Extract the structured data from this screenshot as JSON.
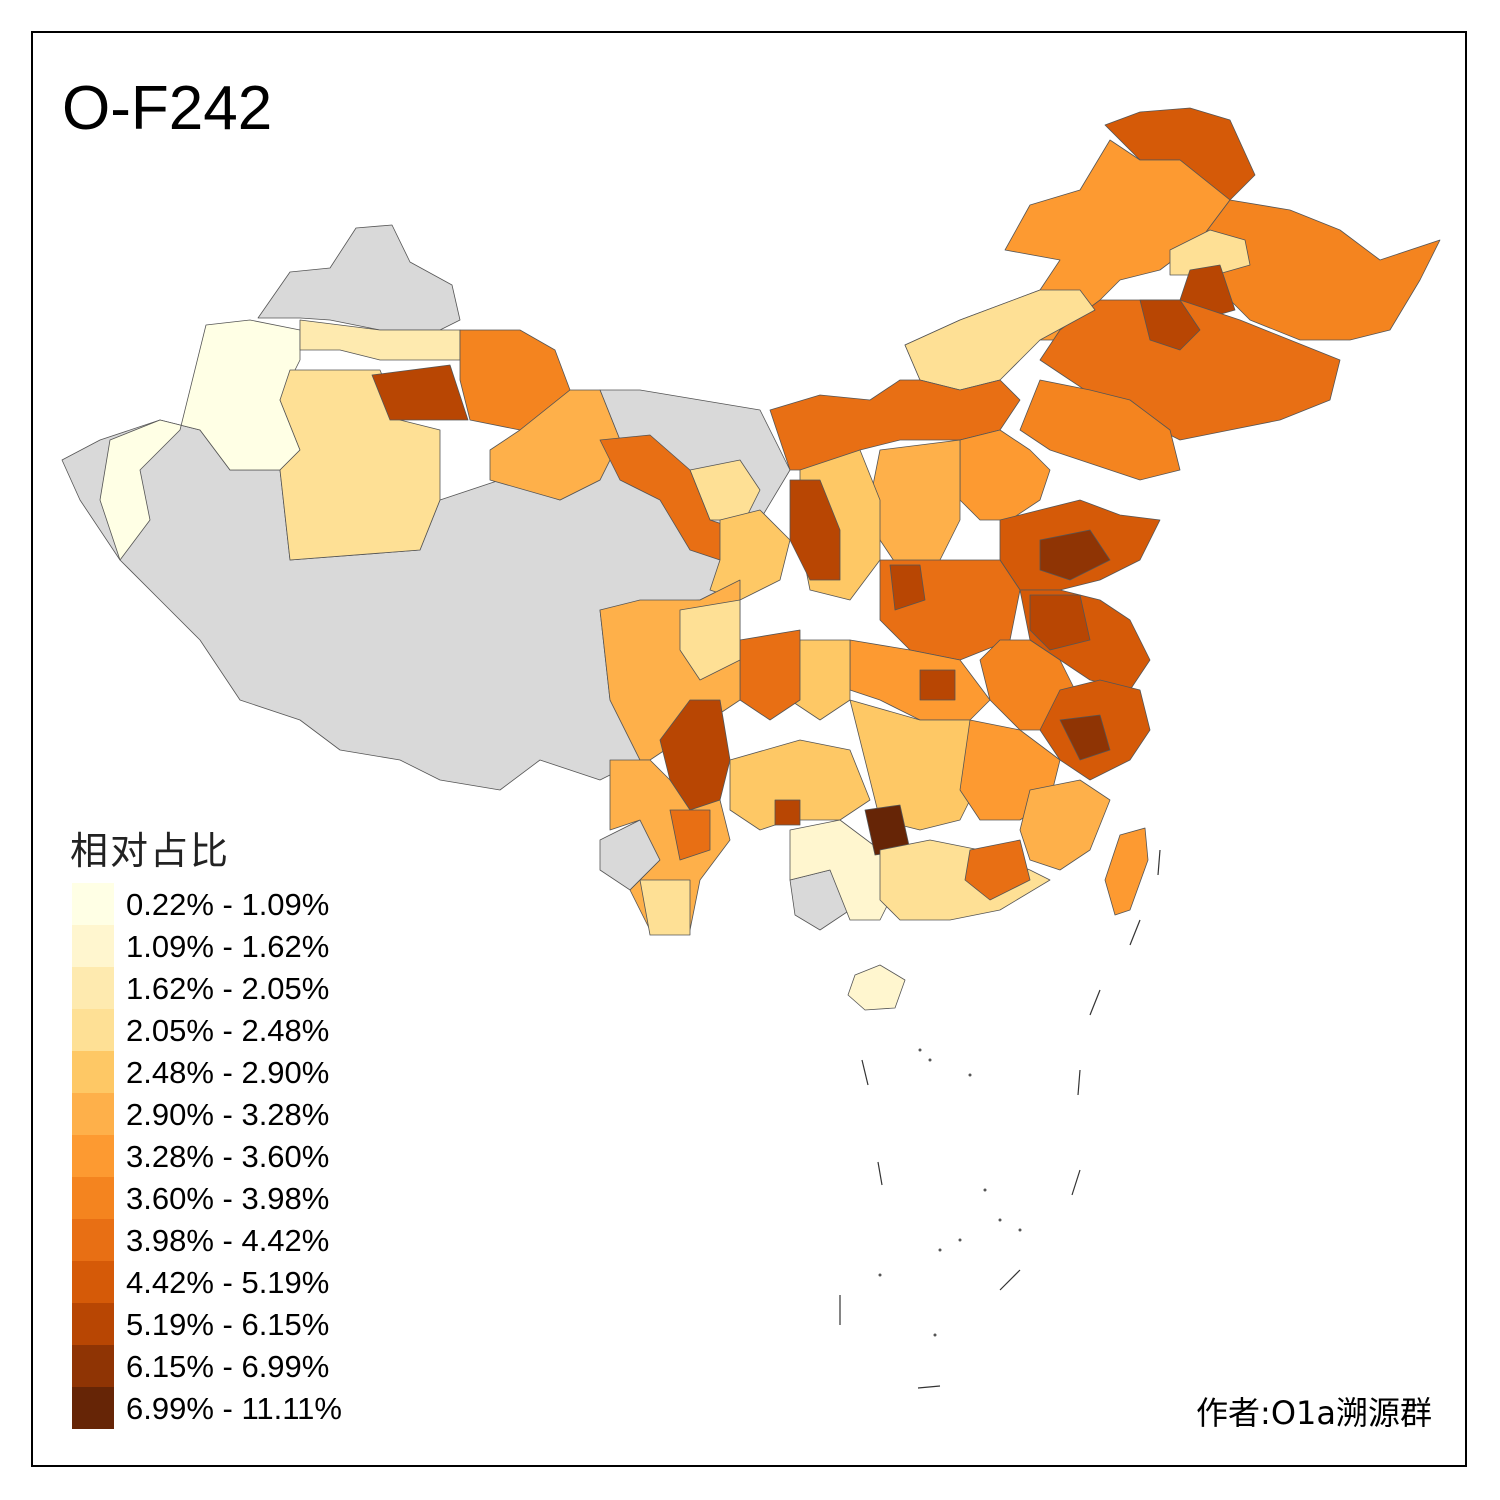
{
  "title": "O-F242",
  "legend": {
    "title": "相对占比",
    "items": [
      {
        "label": "0.22% - 1.09%",
        "color": "#ffffe5"
      },
      {
        "label": "1.09% - 1.62%",
        "color": "#fff6cf"
      },
      {
        "label": "1.62% - 2.05%",
        "color": "#feeaaf"
      },
      {
        "label": "2.05% - 2.48%",
        "color": "#fee095"
      },
      {
        "label": "2.48% - 2.90%",
        "color": "#fec865"
      },
      {
        "label": "2.90% - 3.28%",
        "color": "#feb04a"
      },
      {
        "label": "3.28% - 3.60%",
        "color": "#fd9a31"
      },
      {
        "label": "3.60% - 3.98%",
        "color": "#f4841f"
      },
      {
        "label": "3.98% - 4.42%",
        "color": "#e86f14"
      },
      {
        "label": "4.42% - 5.19%",
        "color": "#d55a08"
      },
      {
        "label": "5.19% - 6.15%",
        "color": "#b84603"
      },
      {
        "label": "6.15% - 6.99%",
        "color": "#8f3404"
      },
      {
        "label": "6.99% - 11.11%",
        "color": "#662506"
      }
    ]
  },
  "no_data_color": "#d9d9d9",
  "author": "作者:O1a溯源群"
}
